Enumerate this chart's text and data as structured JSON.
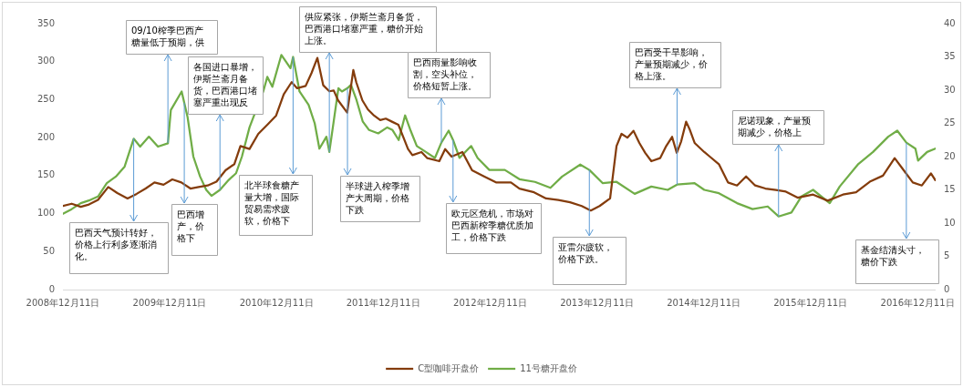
{
  "chart_data": {
    "type": "line",
    "series": [
      {
        "name": "C型咖啡开盘价",
        "color": "#843c0c",
        "x": [
          "2008-12-11",
          "2009-01-10",
          "2009-02-10",
          "2009-03-10",
          "2009-04-10",
          "2009-05-15",
          "2009-06-15",
          "2009-07-20",
          "2009-08-20",
          "2009-09-20",
          "2009-10-20",
          "2009-11-20",
          "2009-12-20",
          "2010-01-20",
          "2010-02-20",
          "2010-03-20",
          "2010-04-20",
          "2010-05-20",
          "2010-06-20",
          "2010-07-20",
          "2010-08-10",
          "2010-09-10",
          "2010-10-10",
          "2010-11-10",
          "2010-12-10",
          "2011-01-05",
          "2011-02-01",
          "2011-02-20",
          "2011-03-21",
          "2011-04-10",
          "2011-04-30",
          "2011-05-20",
          "2011-06-10",
          "2011-06-25",
          "2011-07-10",
          "2011-08-10",
          "2011-08-31",
          "2011-09-10",
          "2011-10-01",
          "2011-10-20",
          "2011-11-10",
          "2011-12-01",
          "2011-12-20",
          "2012-01-10",
          "2012-02-01",
          "2012-03-05",
          "2012-03-20",
          "2012-04-20",
          "2012-05-10",
          "2012-06-20",
          "2012-07-10",
          "2012-08-01",
          "2012-09-07",
          "2012-10-10",
          "2012-11-20",
          "2012-12-31",
          "2013-02-20",
          "2013-03-21",
          "2013-05-10",
          "2013-06-20",
          "2013-08-01",
          "2013-09-10",
          "2013-10-20",
          "2013-11-20",
          "2013-12-20",
          "2014-01-25",
          "2014-02-16",
          "2014-03-05",
          "2014-03-25",
          "2014-04-15",
          "2014-05-05",
          "2014-05-25",
          "2014-06-15",
          "2014-07-15",
          "2014-08-05",
          "2014-08-25",
          "2014-09-10",
          "2014-09-25",
          "2014-10-12",
          "2014-10-25",
          "2014-11-10",
          "2014-12-13",
          "2015-01-01",
          "2015-02-01",
          "2015-03-04",
          "2015-04-04",
          "2015-05-05",
          "2015-06-05",
          "2015-07-10",
          "2015-08-15",
          "2015-09-18",
          "2015-10-28",
          "2015-12-20",
          "2016-02-08",
          "2016-03-31",
          "2016-05-15",
          "2016-07-01",
          "2016-08-15",
          "2016-09-24",
          "2016-10-25",
          "2016-11-25",
          "2016-12-26",
          "2017-01-26",
          "2017-02-10"
        ],
        "values": [
          110,
          113,
          109,
          112,
          118,
          135,
          127,
          120,
          126,
          133,
          141,
          138,
          145,
          141,
          133,
          135,
          137,
          142,
          157,
          165,
          189,
          185,
          205,
          217,
          229,
          257,
          273,
          265,
          268,
          285,
          305,
          269,
          261,
          262,
          249,
          233,
          289,
          273,
          249,
          237,
          229,
          223,
          225,
          221,
          217,
          185,
          177,
          181,
          173,
          169,
          185,
          175,
          181,
          157,
          149,
          141,
          141,
          133,
          128,
          120,
          118,
          115,
          110,
          104,
          110,
          120,
          189,
          205,
          200,
          209,
          193,
          180,
          169,
          173,
          189,
          201,
          180,
          195,
          221,
          210,
          193,
          181,
          175,
          165,
          141,
          137,
          149,
          137,
          133,
          131,
          129,
          121,
          125,
          117,
          125,
          128,
          142,
          150,
          173,
          157,
          141,
          137,
          153,
          144
        ]
      },
      {
        "name": "11号糖开盘价",
        "color": "#70ad47",
        "axis": "y2",
        "x": [
          "2008-12-11",
          "2009-01-10",
          "2009-02-10",
          "2009-03-10",
          "2009-04-10",
          "2009-05-10",
          "2009-06-10",
          "2009-07-10",
          "2009-08-10",
          "2009-09-01",
          "2009-10-01",
          "2009-11-01",
          "2009-12-05",
          "2009-12-15",
          "2010-01-21",
          "2010-02-10",
          "2010-03-02",
          "2010-03-25",
          "2010-04-15",
          "2010-05-03",
          "2010-06-01",
          "2010-07-01",
          "2010-07-26",
          "2010-08-15",
          "2010-09-10",
          "2010-10-27",
          "2010-11-10",
          "2010-11-27",
          "2010-12-28",
          "2011-01-28",
          "2011-02-06",
          "2011-02-28",
          "2011-03-31",
          "2011-04-21",
          "2011-05-07",
          "2011-05-31",
          "2011-06-10",
          "2011-07-11",
          "2011-07-23",
          "2011-08-11",
          "2011-08-23",
          "2011-09-11",
          "2011-10-02",
          "2011-10-24",
          "2011-11-24",
          "2011-12-25",
          "2012-01-12",
          "2012-02-02",
          "2012-02-24",
          "2012-03-14",
          "2012-04-04",
          "2012-05-05",
          "2012-06-05",
          "2012-06-27",
          "2012-07-22",
          "2012-08-06",
          "2012-08-28",
          "2012-10-07",
          "2012-10-29",
          "2012-12-08",
          "2013-01-30",
          "2013-03-21",
          "2013-05-13",
          "2013-07-05",
          "2013-08-14",
          "2013-10-15",
          "2013-11-15",
          "2013-12-31",
          "2014-02-16",
          "2014-04-19",
          "2014-06-15",
          "2014-08-10",
          "2014-09-11",
          "2014-11-10",
          "2014-12-13",
          "2015-02-01",
          "2015-04-04",
          "2015-05-27",
          "2015-07-18",
          "2015-08-24",
          "2015-10-07",
          "2015-11-10",
          "2015-12-20",
          "2016-02-15",
          "2016-03-20",
          "2016-05-23",
          "2016-07-12",
          "2016-09-02",
          "2016-10-03",
          "2016-11-03",
          "2016-12-04",
          "2016-12-13",
          "2017-01-13",
          "2017-02-10"
        ],
        "values": [
          11.4,
          12.1,
          13,
          13.4,
          14,
          16,
          17,
          18.5,
          22.7,
          21.5,
          23,
          21.5,
          22,
          27,
          29.8,
          26,
          20,
          17,
          15,
          14.1,
          15,
          16.5,
          17.5,
          20,
          24.4,
          29.8,
          32,
          30.5,
          35.3,
          33.3,
          35,
          29.8,
          27.8,
          25,
          21.2,
          23,
          20.7,
          30.3,
          29.8,
          30.3,
          30.8,
          28.5,
          25.3,
          24,
          23.5,
          24.4,
          24,
          22.5,
          26.2,
          23.9,
          21.6,
          20.7,
          19.8,
          22.1,
          23.9,
          22.5,
          19.8,
          21.6,
          19.8,
          18,
          18,
          16.6,
          16.2,
          15.3,
          17,
          18.8,
          18,
          16,
          16.2,
          14.4,
          15.5,
          15,
          15.8,
          16,
          15,
          14.5,
          13,
          12.1,
          12.5,
          11,
          11.6,
          14,
          15,
          13,
          15.5,
          18.9,
          20.7,
          23,
          23.9,
          22.1,
          21.2,
          19.4,
          20.7,
          21.2
        ]
      }
    ],
    "xlim": [
      "2008-12-11",
      "2017-02-11"
    ],
    "xticks": [
      {
        "value": "2008-12-11",
        "label": "2008年12月11日"
      },
      {
        "value": "2009-12-11",
        "label": "2009年12月11日"
      },
      {
        "value": "2010-12-11",
        "label": "2010年12月11日"
      },
      {
        "value": "2011-12-11",
        "label": "2011年12月11日"
      },
      {
        "value": "2012-12-11",
        "label": "2012年12月11日"
      },
      {
        "value": "2013-12-11",
        "label": "2013年12月11日"
      },
      {
        "value": "2014-12-11",
        "label": "2014年12月11日"
      },
      {
        "value": "2015-12-11",
        "label": "2015年12月11日"
      },
      {
        "value": "2016-12-11",
        "label": "2016年12月11日"
      }
    ],
    "ylim": [
      0,
      350
    ],
    "yticks": [
      0,
      50,
      100,
      150,
      200,
      250,
      300,
      350
    ],
    "y2lim": [
      0,
      40
    ],
    "y2ticks": [
      0,
      5,
      10,
      15,
      20,
      25,
      30,
      35,
      40
    ],
    "legend": "bottom",
    "annotations": [
      {
        "text": "巴西天气预计转好，价格上行利多逐渐消化。",
        "x": "2009-08-10",
        "y": 199
      },
      {
        "text": "09/10榨季巴西产糖量低于预期，供",
        "x": "2009-12-05",
        "y": 193
      },
      {
        "text": "巴西增产，价格下",
        "x": "2010-01-30",
        "y": 246
      },
      {
        "text": "各国进口暴增，伊斯兰斋月备货，巴西港口堵塞严重出现反",
        "x": "2010-06-01",
        "y": 131
      },
      {
        "text": "北半球食糖产量大增，国际贸易需求疲软，价格下",
        "x": "2011-02-06",
        "y": 306
      },
      {
        "text": "供应紧张，伊斯兰斋月备货，巴西港口堵塞严重，糖价开始上涨。",
        "x": "2011-06-10",
        "y": 181
      },
      {
        "text": "半球进入榨季增产大周期，价格下跌",
        "x": "2011-08-11",
        "y": 265
      },
      {
        "text": "巴西雨量影响收割，空头补位，价格短暂上涨。",
        "x": "2012-06-27",
        "y": 193
      },
      {
        "text": "欧元区危机，市场对巴西新榨季糖优质加工，价格下跌",
        "x": "2012-08-06",
        "y": 197
      },
      {
        "text": "亚雷尔疲软，价格下跌。",
        "x": "2013-11-15",
        "y": 158
      },
      {
        "text": "巴西受干旱影响，产量预期减少，价格上涨。",
        "x": "2014-09-11",
        "y": 138
      },
      {
        "text": "尼诺现象，产量预期减少，价格上",
        "x": "2015-08-24",
        "y": 96
      },
      {
        "text": "基金结清头寸，糖价下跌",
        "x": "2016-11-03",
        "y": 193
      }
    ]
  }
}
